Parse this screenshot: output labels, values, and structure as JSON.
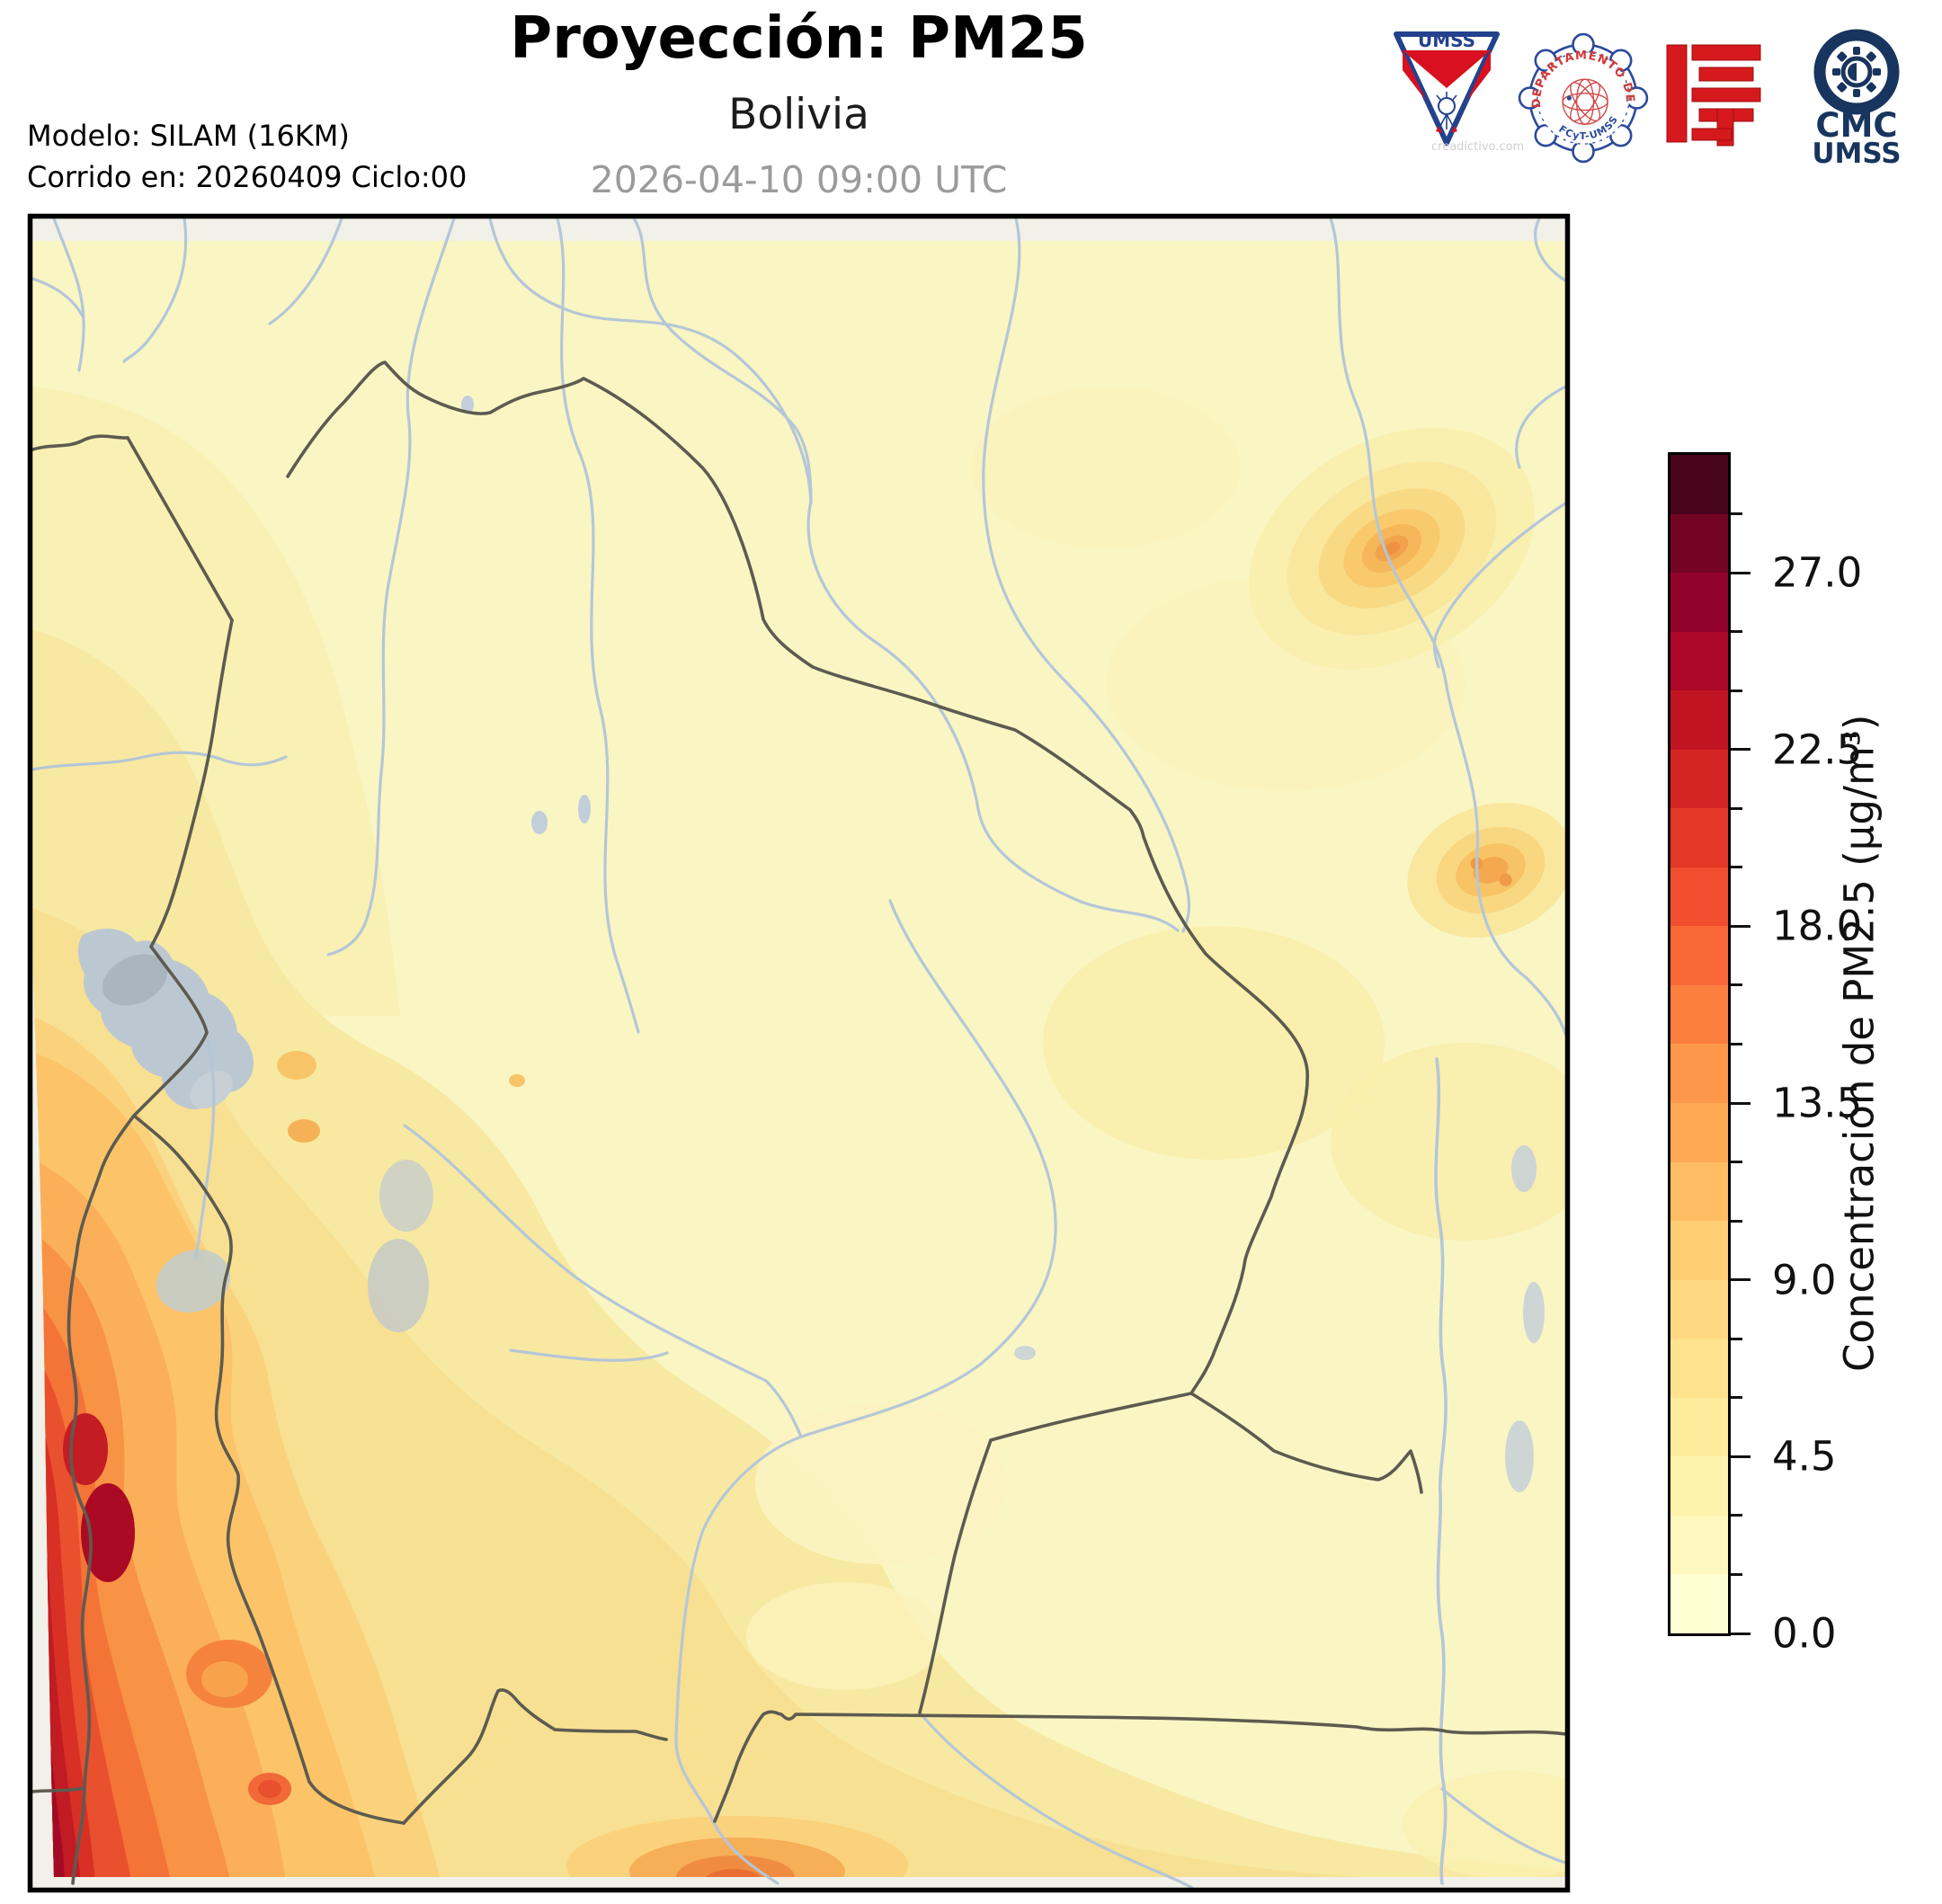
{
  "header": {
    "title": "Proyección: PM25",
    "subtitle": "Bolivia",
    "timestamp": "2026-04-10 09:00 UTC",
    "model_line1": "Modelo: SILAM (16KM)",
    "model_line2": "Corrido en: 20260409 Ciclo:00"
  },
  "logos": {
    "umss": {
      "label": "UMSS",
      "watermark": "creadictivo.com"
    },
    "physics_seal": {
      "arc_text": "DEPARTAMENTO DE FÍSICA",
      "bottom_text": "FCyT-UMSS"
    },
    "cmc": {
      "line1": "CMC",
      "line2": "UMSS"
    }
  },
  "colorbar": {
    "title": "Concentración de PM2.5 (µg/m³)",
    "min": 0,
    "max": 30,
    "segment_step": 1.5,
    "major_tick_step": 4.5,
    "major_ticks": [
      "0.0",
      "4.5",
      "9.0",
      "13.5",
      "18.0",
      "22.5",
      "27.0"
    ],
    "colors": [
      "#fffdd2",
      "#fef8bf",
      "#fef2ac",
      "#feea9b",
      "#fee28d",
      "#fed981",
      "#fecd74",
      "#febd63",
      "#feaa55",
      "#fd9749",
      "#fc7f3f",
      "#f96737",
      "#f14e2f",
      "#e33727",
      "#d42523",
      "#c11423",
      "#ac0726",
      "#92032a",
      "#740522",
      "#48051c"
    ]
  },
  "chart_data": {
    "type": "heatmap",
    "title": "Proyección: PM25",
    "region": "Bolivia",
    "variable": "Concentración de PM2.5 (µg/m³)",
    "model": "SILAM (16KM)",
    "run": "20260409 Ciclo:00",
    "valid_time": "2026-04-10 09:00 UTC",
    "scale": {
      "min": 0,
      "max": 30,
      "contour_interval": 1.5,
      "labeled_ticks": [
        0,
        4.5,
        9.0,
        13.5,
        18.0,
        22.5,
        27.0
      ],
      "units": "µg/m³"
    },
    "observed_pattern": {
      "eastern_lowlands": "1.5-7.5",
      "central_south_band": "4.5-9",
      "pacific_coast_west_band": "18->30 (dark red maximum along left edge)",
      "northeast_hotspot": "9-12",
      "east_hotspot": "9-10.5"
    }
  }
}
